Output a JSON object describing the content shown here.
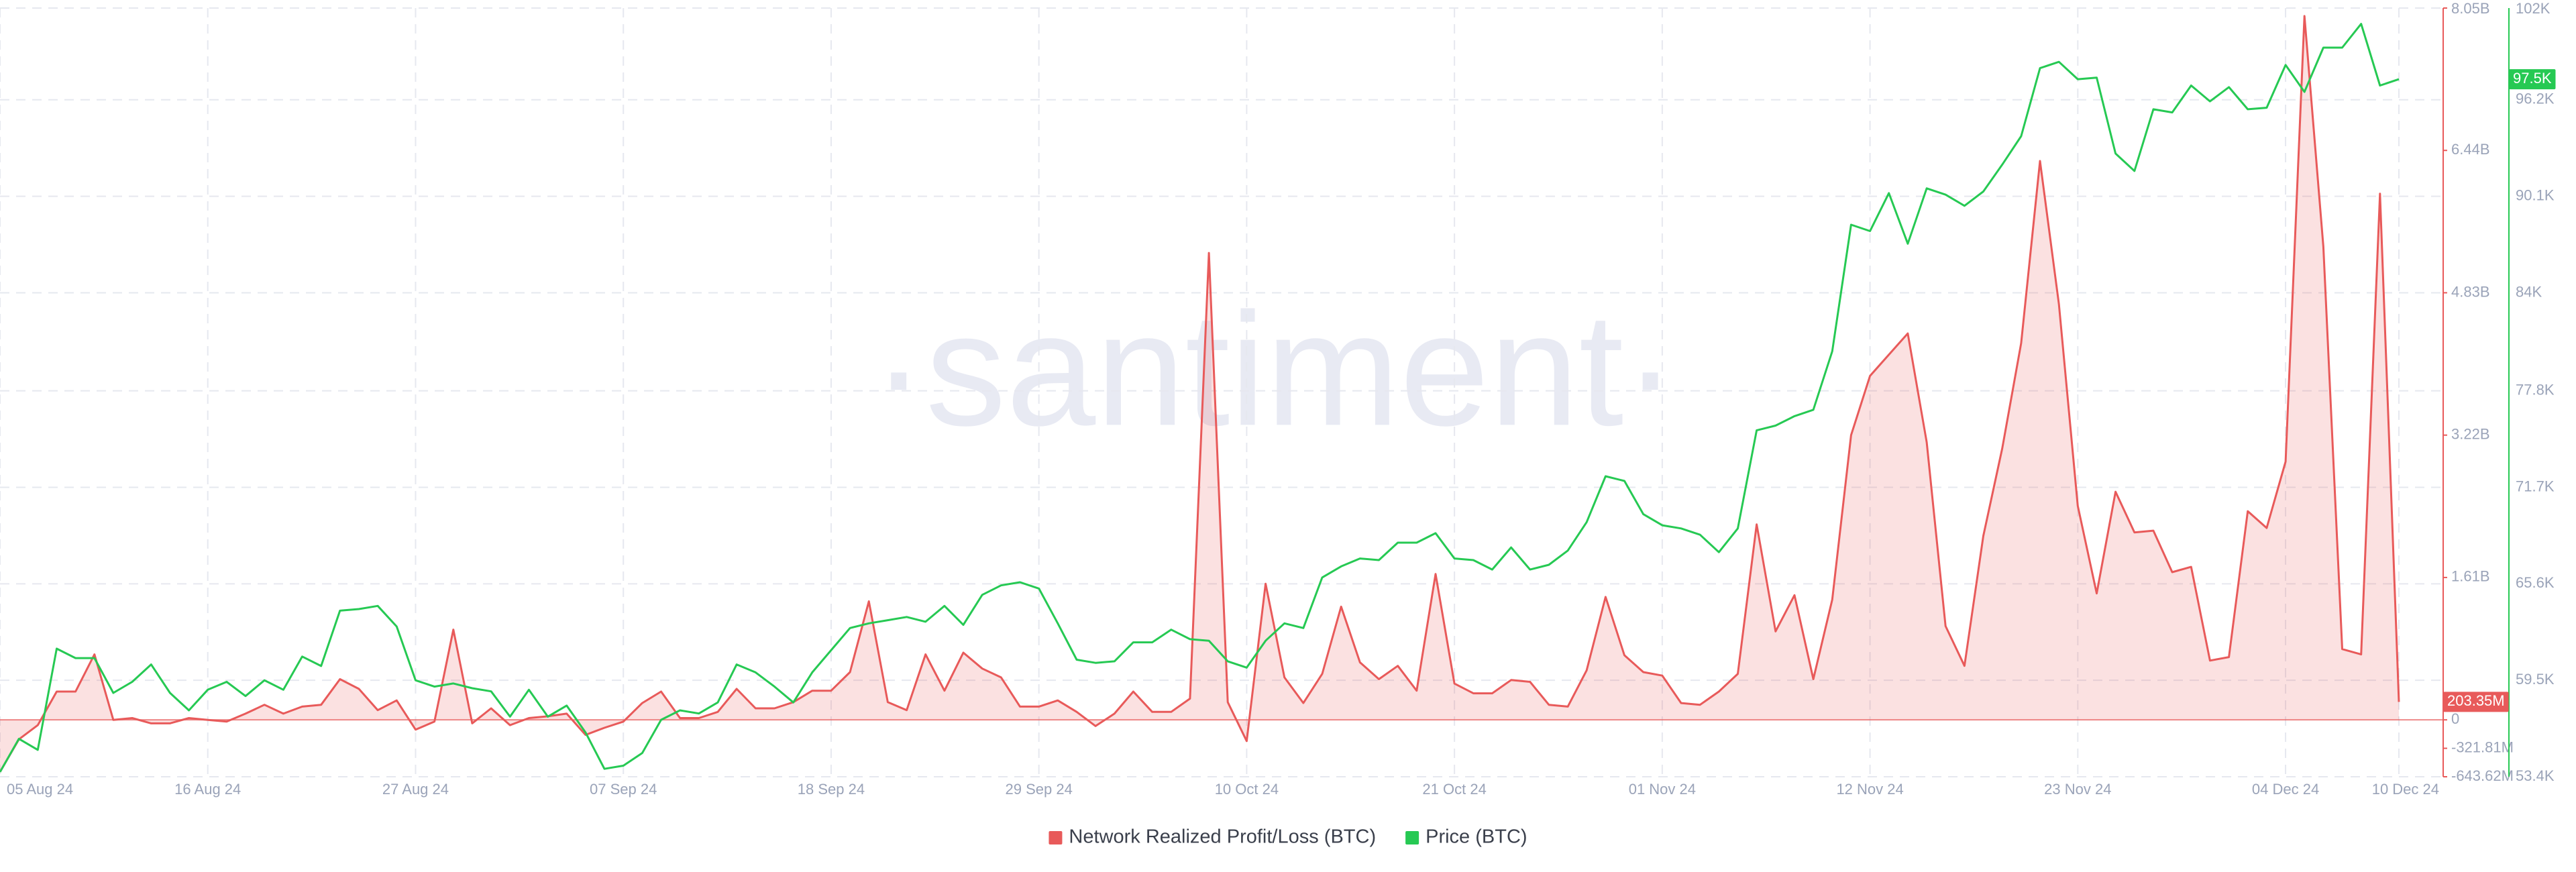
{
  "chart_data": {
    "type": "line",
    "watermark": "·santiment·",
    "x": [
      "2024-08-05",
      "2024-08-06",
      "2024-08-07",
      "2024-08-08",
      "2024-08-09",
      "2024-08-10",
      "2024-08-11",
      "2024-08-12",
      "2024-08-13",
      "2024-08-14",
      "2024-08-15",
      "2024-08-16",
      "2024-08-17",
      "2024-08-18",
      "2024-08-19",
      "2024-08-20",
      "2024-08-21",
      "2024-08-22",
      "2024-08-23",
      "2024-08-24",
      "2024-08-25",
      "2024-08-26",
      "2024-08-27",
      "2024-08-28",
      "2024-08-29",
      "2024-08-30",
      "2024-08-31",
      "2024-09-01",
      "2024-09-02",
      "2024-09-03",
      "2024-09-04",
      "2024-09-05",
      "2024-09-06",
      "2024-09-07",
      "2024-09-08",
      "2024-09-09",
      "2024-09-10",
      "2024-09-11",
      "2024-09-12",
      "2024-09-13",
      "2024-09-14",
      "2024-09-15",
      "2024-09-16",
      "2024-09-17",
      "2024-09-18",
      "2024-09-19",
      "2024-09-20",
      "2024-09-21",
      "2024-09-22",
      "2024-09-23",
      "2024-09-24",
      "2024-09-25",
      "2024-09-26",
      "2024-09-27",
      "2024-09-28",
      "2024-09-29",
      "2024-09-30",
      "2024-10-01",
      "2024-10-02",
      "2024-10-03",
      "2024-10-04",
      "2024-10-05",
      "2024-10-06",
      "2024-10-07",
      "2024-10-08",
      "2024-10-09",
      "2024-10-10",
      "2024-10-11",
      "2024-10-12",
      "2024-10-13",
      "2024-10-14",
      "2024-10-15",
      "2024-10-16",
      "2024-10-17",
      "2024-10-18",
      "2024-10-19",
      "2024-10-20",
      "2024-10-21",
      "2024-10-22",
      "2024-10-23",
      "2024-10-24",
      "2024-10-25",
      "2024-10-26",
      "2024-10-27",
      "2024-10-28",
      "2024-10-29",
      "2024-10-30",
      "2024-10-31",
      "2024-11-01",
      "2024-11-02",
      "2024-11-03",
      "2024-11-04",
      "2024-11-05",
      "2024-11-06",
      "2024-11-07",
      "2024-11-08",
      "2024-11-09",
      "2024-11-10",
      "2024-11-11",
      "2024-11-12",
      "2024-11-13",
      "2024-11-14",
      "2024-11-15",
      "2024-11-16",
      "2024-11-17",
      "2024-11-18",
      "2024-11-19",
      "2024-11-20",
      "2024-11-21",
      "2024-11-22",
      "2024-11-23",
      "2024-11-24",
      "2024-11-25",
      "2024-11-26",
      "2024-11-27",
      "2024-11-28",
      "2024-11-29",
      "2024-11-30",
      "2024-12-01",
      "2024-12-02",
      "2024-12-03",
      "2024-12-04",
      "2024-12-05",
      "2024-12-06",
      "2024-12-07",
      "2024-12-08",
      "2024-12-09",
      "2024-12-10"
    ],
    "xlim": [
      "2024-08-05",
      "2024-12-10"
    ],
    "xticks": [
      {
        "value": "2024-08-05",
        "label": "05 Aug 24"
      },
      {
        "value": "2024-08-16",
        "label": "16 Aug 24"
      },
      {
        "value": "2024-08-27",
        "label": "27 Aug 24"
      },
      {
        "value": "2024-09-07",
        "label": "07 Sep 24"
      },
      {
        "value": "2024-09-18",
        "label": "18 Sep 24"
      },
      {
        "value": "2024-09-29",
        "label": "29 Sep 24"
      },
      {
        "value": "2024-10-10",
        "label": "10 Oct 24"
      },
      {
        "value": "2024-10-21",
        "label": "21 Oct 24"
      },
      {
        "value": "2024-11-01",
        "label": "01 Nov 24"
      },
      {
        "value": "2024-11-12",
        "label": "12 Nov 24"
      },
      {
        "value": "2024-11-23",
        "label": "23 Nov 24"
      },
      {
        "value": "2024-12-04",
        "label": "04 Dec 24"
      },
      {
        "value": "2024-12-10",
        "label": "10 Dec 24"
      }
    ],
    "ylim": [
      -643620000,
      8050000000
    ],
    "yticks": [
      {
        "value": 8050000000,
        "label": "8.05B"
      },
      {
        "value": 6440000000,
        "label": "6.44B"
      },
      {
        "value": 4830000000,
        "label": "4.83B"
      },
      {
        "value": 3220000000,
        "label": "3.22B"
      },
      {
        "value": 1610000000,
        "label": "1.61B"
      },
      0,
      {
        "value": -321810000,
        "label": "-321.81M"
      },
      {
        "value": -643620000,
        "label": "-643.62M"
      }
    ],
    "y2lim": [
      53400,
      102000
    ],
    "y2ticks": [
      {
        "value": 102000,
        "label": "102K"
      },
      {
        "value": 96200,
        "label": "96.2K"
      },
      {
        "value": 90100,
        "label": "90.1K"
      },
      {
        "value": 84000,
        "label": "84K"
      },
      {
        "value": 77800,
        "label": "77.8K"
      },
      {
        "value": 71700,
        "label": "71.7K"
      },
      {
        "value": 65600,
        "label": "65.6K"
      },
      {
        "value": 59500,
        "label": "59.5K"
      },
      {
        "value": 53400,
        "label": "53.4K"
      }
    ],
    "grid": true,
    "legend": "bottom",
    "series": [
      {
        "name": "Network Realized Profit/Loss (BTC)",
        "color": "#e85a5a",
        "axis": "y",
        "area": true,
        "last_label": "203.35M",
        "values": [
          -590000000,
          -220000000,
          -60000000,
          320000000,
          320000000,
          740000000,
          0,
          20000000,
          -40000000,
          -40000000,
          20000000,
          0,
          -20000000,
          70000000,
          170000000,
          70000000,
          150000000,
          170000000,
          460000000,
          350000000,
          110000000,
          220000000,
          -110000000,
          -20000000,
          1020000000,
          -40000000,
          130000000,
          -60000000,
          20000000,
          40000000,
          70000000,
          -170000000,
          -90000000,
          -20000000,
          190000000,
          320000000,
          20000000,
          20000000,
          90000000,
          350000000,
          130000000,
          130000000,
          200000000,
          330000000,
          330000000,
          540000000,
          1340000000,
          200000000,
          110000000,
          740000000,
          330000000,
          760000000,
          580000000,
          480000000,
          150000000,
          150000000,
          220000000,
          90000000,
          -70000000,
          70000000,
          320000000,
          90000000,
          90000000,
          240000000,
          5280000000,
          200000000,
          -240000000,
          1540000000,
          480000000,
          190000000,
          520000000,
          1280000000,
          650000000,
          460000000,
          610000000,
          330000000,
          1650000000,
          410000000,
          300000000,
          300000000,
          450000000,
          430000000,
          170000000,
          150000000,
          560000000,
          1390000000,
          730000000,
          540000000,
          500000000,
          190000000,
          170000000,
          320000000,
          520000000,
          2210000000,
          1000000000,
          1410000000,
          460000000,
          1360000000,
          3220000000,
          3890000000,
          4130000000,
          4370000000,
          3140000000,
          1060000000,
          610000000,
          2080000000,
          3070000000,
          4260000000,
          6320000000,
          4700000000,
          2420000000,
          1430000000,
          2580000000,
          2120000000,
          2140000000,
          1670000000,
          1730000000,
          670000000,
          710000000,
          2360000000,
          2170000000,
          2920000000,
          7960000000,
          5350000000,
          800000000,
          740000000,
          5950000000,
          203350000
        ]
      },
      {
        "name": "Price (BTC)",
        "color": "#26c953",
        "axis": "y2",
        "last_label": "97.5K",
        "values": [
          53700,
          55800,
          55100,
          61500,
          60900,
          60900,
          58700,
          59400,
          60500,
          58700,
          57600,
          58900,
          59400,
          58500,
          59500,
          58900,
          61000,
          60400,
          63900,
          64000,
          64200,
          62900,
          59500,
          59100,
          59300,
          59000,
          58800,
          57200,
          58900,
          57200,
          57900,
          56200,
          53900,
          54100,
          54900,
          57000,
          57600,
          57400,
          58100,
          60500,
          60000,
          59100,
          58100,
          60000,
          61400,
          62800,
          63100,
          63300,
          63500,
          63200,
          64200,
          63000,
          64900,
          65500,
          65700,
          65300,
          63100,
          60800,
          60600,
          60700,
          61900,
          61900,
          62700,
          62100,
          62000,
          60700,
          60300,
          62000,
          63100,
          62800,
          66000,
          66700,
          67200,
          67100,
          68200,
          68200,
          68800,
          67200,
          67100,
          66500,
          67900,
          66500,
          66800,
          67700,
          69500,
          72400,
          72100,
          70000,
          69300,
          69100,
          68700,
          67600,
          69100,
          75300,
          75600,
          76200,
          76600,
          80300,
          88300,
          87900,
          90300,
          87100,
          90600,
          90200,
          89500,
          90400,
          92100,
          93900,
          98200,
          98600,
          97500,
          97600,
          92800,
          91700,
          95600,
          95400,
          97100,
          96100,
          97000,
          95600,
          95700,
          98400,
          96700,
          99500,
          99500,
          101000,
          97100,
          97500
        ]
      }
    ]
  }
}
